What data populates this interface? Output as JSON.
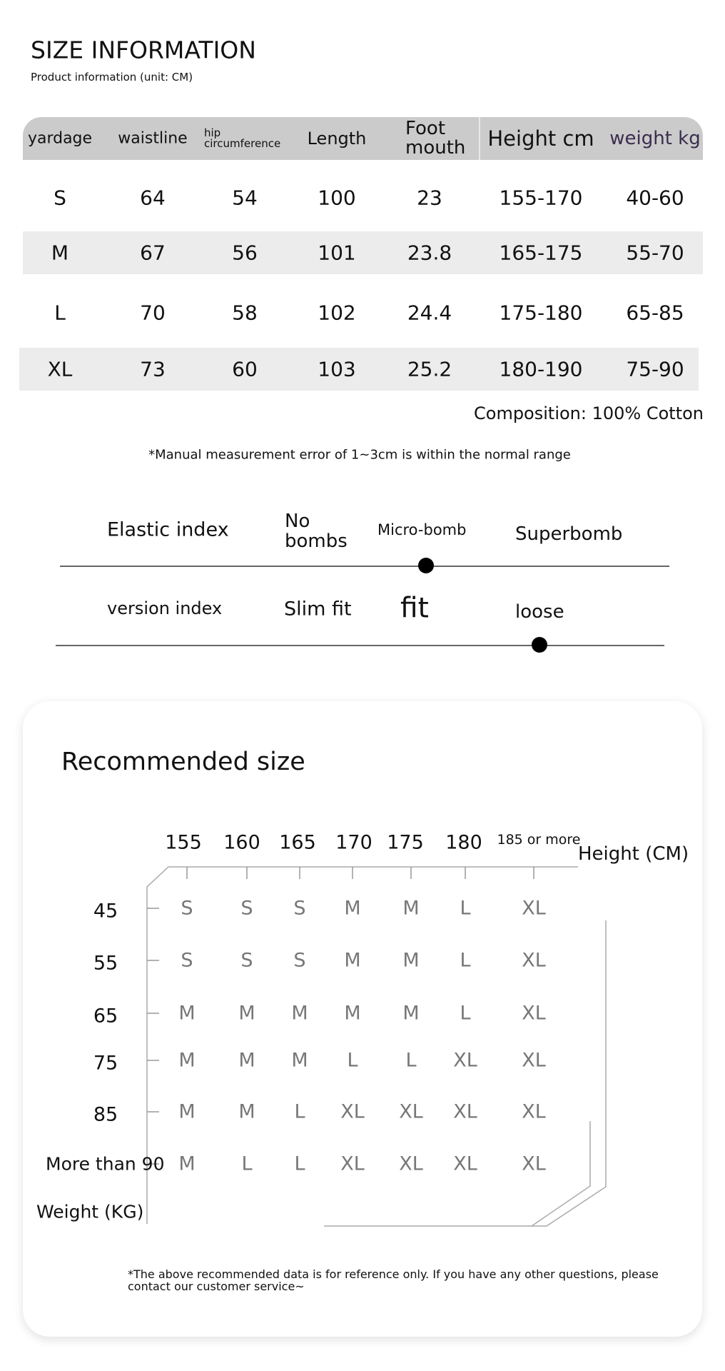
{
  "header": {
    "title": "SIZE INFORMATION",
    "subtitle": "Product information (unit: CM)"
  },
  "size_table": {
    "columns": [
      "yardage",
      "waistline",
      "hip circumference",
      "Length",
      "Foot mouth",
      "Height cm",
      "weight kg"
    ],
    "rows": [
      [
        "S",
        "64",
        "54",
        "100",
        "23",
        "155-170",
        "40-60"
      ],
      [
        "M",
        "67",
        "56",
        "101",
        "23.8",
        "165-175",
        "55-70"
      ],
      [
        "L",
        "70",
        "58",
        "102",
        "24.4",
        "175-180",
        "65-85"
      ],
      [
        "XL",
        "73",
        "60",
        "103",
        "25.2",
        "180-190",
        "75-90"
      ]
    ],
    "header_bg": "#cbcbcb",
    "stripe_bg": "#ececec",
    "weight_header_color": "#3b2d4f"
  },
  "composition": "Composition: 100% Cotton",
  "measurement_note": "*Manual measurement error of 1~3cm is within the normal range",
  "elastic": {
    "label": "Elastic index",
    "options": [
      "No bombs",
      "Micro-bomb",
      "Superbomb"
    ],
    "selected": "Micro-bomb"
  },
  "version": {
    "label": "version index",
    "options": [
      "Slim fit",
      "fit",
      "loose"
    ],
    "selected": "loose"
  },
  "recommended": {
    "title": "Recommended size",
    "height_label": "Height (CM)",
    "weight_label": "Weight (KG)",
    "heights": [
      "155",
      "160",
      "165",
      "170",
      "175",
      "180",
      "185 or more"
    ],
    "weights": [
      "45",
      "55",
      "65",
      "75",
      "85",
      "More than 90"
    ],
    "grid": [
      [
        "S",
        "S",
        "S",
        "M",
        "M",
        "L",
        "XL"
      ],
      [
        "S",
        "S",
        "S",
        "M",
        "M",
        "L",
        "XL"
      ],
      [
        "M",
        "M",
        "M",
        "M",
        "M",
        "L",
        "XL"
      ],
      [
        "M",
        "M",
        "M",
        "L",
        "L",
        "XL",
        "XL"
      ],
      [
        "M",
        "M",
        "L",
        "XL",
        "XL",
        "XL",
        "XL"
      ],
      [
        "M",
        "L",
        "L",
        "XL",
        "XL",
        "XL",
        "XL"
      ]
    ],
    "footnote": "*The above recommended data is for reference only. If you have any other questions, please contact our customer service~"
  }
}
